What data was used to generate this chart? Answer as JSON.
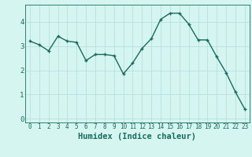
{
  "x": [
    0,
    1,
    2,
    3,
    4,
    5,
    6,
    7,
    8,
    9,
    10,
    11,
    12,
    13,
    14,
    15,
    16,
    17,
    18,
    19,
    20,
    21,
    22,
    23
  ],
  "y": [
    3.2,
    3.05,
    2.8,
    3.4,
    3.2,
    3.15,
    2.4,
    2.65,
    2.65,
    2.6,
    1.85,
    2.3,
    2.9,
    3.3,
    4.1,
    4.35,
    4.35,
    3.9,
    3.25,
    3.25,
    2.55,
    1.9,
    1.1,
    0.4
  ],
  "line_color": "#1a6b5e",
  "marker": "+",
  "marker_size": 3.5,
  "linewidth": 1.0,
  "bg_color": "#d4f5f0",
  "grid_color": "#b8e0dc",
  "xlabel": "Humidex (Indice chaleur)",
  "xlabel_fontsize": 7.5,
  "ylim": [
    -0.15,
    4.7
  ],
  "xlim": [
    -0.5,
    23.5
  ],
  "yticks": [
    0,
    1,
    2,
    3,
    4
  ],
  "xtick_fontsize": 5.5,
  "ytick_fontsize": 6.5
}
